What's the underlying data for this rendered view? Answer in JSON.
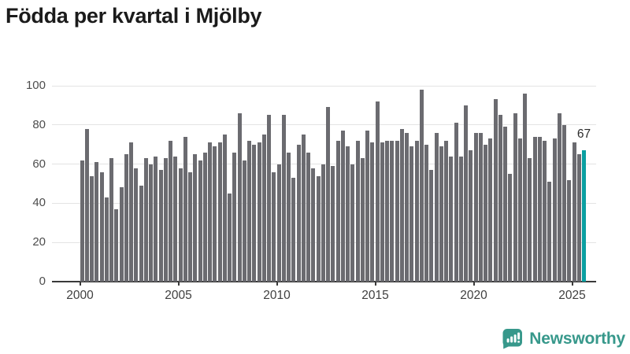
{
  "title": "Födda per kvartal i Mjölby",
  "chart_data": {
    "type": "bar",
    "title": "Födda per kvartal i Mjölby",
    "x_unit": "quarter",
    "x_start": "2000-Q1",
    "x_end": "2025-Q3",
    "values": [
      62,
      78,
      54,
      61,
      56,
      43,
      63,
      37,
      48,
      65,
      71,
      58,
      49,
      63,
      60,
      64,
      57,
      63,
      72,
      64,
      58,
      74,
      56,
      65,
      62,
      66,
      71,
      69,
      71,
      75,
      45,
      66,
      86,
      62,
      72,
      70,
      71,
      75,
      85,
      56,
      60,
      85,
      66,
      53,
      70,
      75,
      66,
      58,
      54,
      60,
      89,
      59,
      72,
      77,
      69,
      60,
      72,
      63,
      77,
      71,
      92,
      71,
      72,
      72,
      72,
      78,
      76,
      69,
      72,
      98,
      70,
      57,
      76,
      69,
      72,
      64,
      81,
      64,
      90,
      67,
      76,
      76,
      70,
      73,
      93,
      85,
      79,
      55,
      86,
      73,
      96,
      63,
      74,
      74,
      72,
      51,
      73,
      86,
      80,
      52,
      71,
      65,
      67
    ],
    "highlight_index": 102,
    "highlight_value_label": "67",
    "yticks": [
      0,
      20,
      40,
      60,
      80,
      100
    ],
    "xticks": [
      2000,
      2005,
      2010,
      2015,
      2020,
      2025
    ],
    "ylim": [
      0,
      100
    ],
    "grid": true,
    "legend": "none",
    "bar_color": "#6b6b70",
    "highlight_color": "#0a9fa1",
    "gridline_color": "#e3e3e3",
    "axis_color": "#3a3a3a"
  },
  "branding": {
    "logo_text": "Newsworthy",
    "logo_color": "#37988b"
  }
}
